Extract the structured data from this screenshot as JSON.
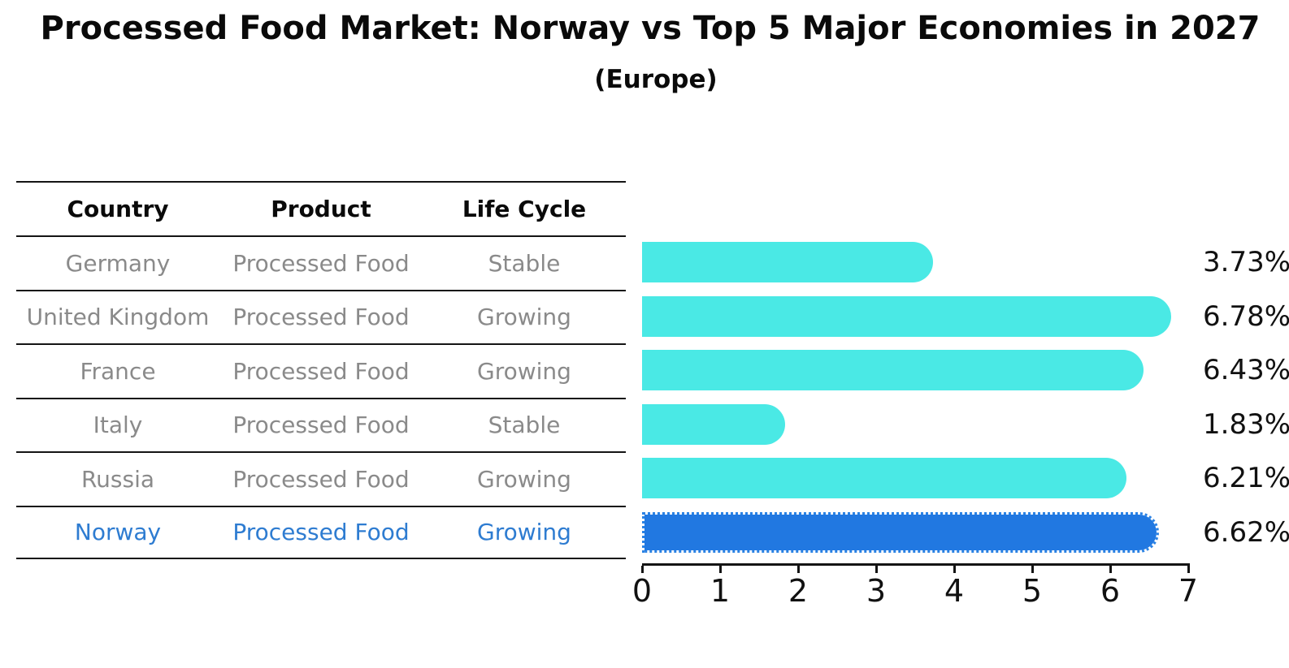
{
  "title": "Processed Food Market: Norway vs Top 5 Major Economies in 2027",
  "subtitle": "(Europe)",
  "table": {
    "headers": [
      "Country",
      "Product",
      "Life Cycle"
    ],
    "rows": [
      {
        "country": "Germany",
        "product": "Processed Food",
        "life_cycle": "Stable",
        "highlight": false
      },
      {
        "country": "United Kingdom",
        "product": "Processed Food",
        "life_cycle": "Growing",
        "highlight": false
      },
      {
        "country": "France",
        "product": "Processed Food",
        "life_cycle": "Growing",
        "highlight": false
      },
      {
        "country": "Italy",
        "product": "Processed Food",
        "life_cycle": "Stable",
        "highlight": false
      },
      {
        "country": "Russia",
        "product": "Processed Food",
        "life_cycle": "Growing",
        "highlight": false
      },
      {
        "country": "Norway",
        "product": "Processed Food",
        "life_cycle": "Growing",
        "highlight": true
      }
    ]
  },
  "chart_data": {
    "type": "bar",
    "orientation": "horizontal",
    "title": "Processed Food Market: Norway vs Top 5 Major Economies in 2027",
    "subtitle": "(Europe)",
    "categories": [
      "Germany",
      "United Kingdom",
      "France",
      "Italy",
      "Russia",
      "Norway"
    ],
    "values": [
      3.73,
      6.78,
      6.43,
      1.83,
      6.21,
      6.62
    ],
    "value_labels": [
      "3.73%",
      "6.78%",
      "6.43%",
      "1.83%",
      "6.21%",
      "6.62%"
    ],
    "unit": "percent",
    "xlim": [
      0,
      7
    ],
    "x_ticks": [
      0,
      1,
      2,
      3,
      4,
      5,
      6,
      7
    ],
    "x_tick_labels": [
      "0",
      "1",
      "2",
      "3",
      "4",
      "5",
      "6",
      "7"
    ],
    "highlight_index": 5,
    "grid": false,
    "legend": "none",
    "colors": {
      "bar": "#4ae9e5",
      "highlight_bar": "#2178e1",
      "highlight_border": "#2a82e4",
      "highlight_text": "#2e7cd1",
      "table_text": "#8a8a8a",
      "axis_text": "#111111",
      "line": "#141414",
      "background": "#ffffff"
    }
  }
}
